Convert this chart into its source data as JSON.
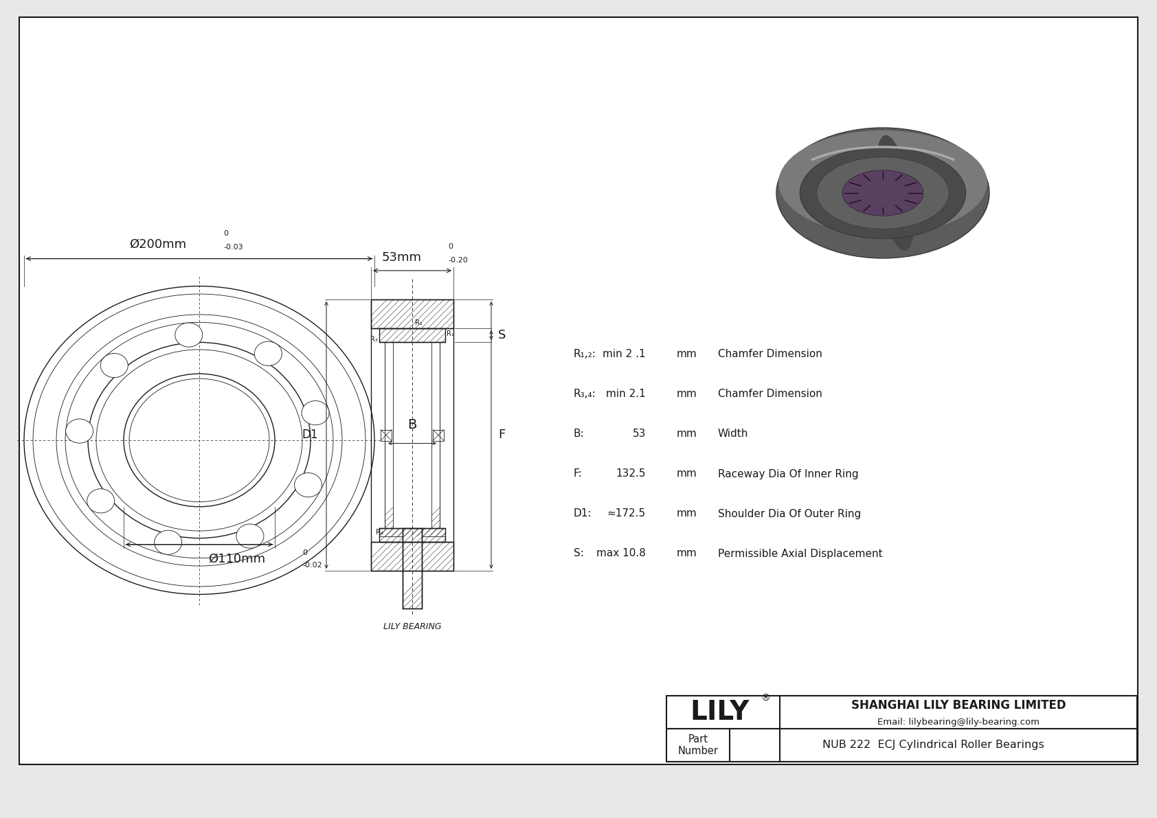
{
  "bg_color": "#e8e8e8",
  "drawing_bg": "#ffffff",
  "line_color": "#1a1a1a",
  "title_box": {
    "company": "SHANGHAI LILY BEARING LIMITED",
    "email": "Email: lilybearing@lily-bearing.com",
    "part_label": "Part\nNumber",
    "part_number": "NUB 222  ECJ Cylindrical Roller Bearings",
    "lily_text": "LILY"
  },
  "specs": [
    {
      "label": "R₁,₂:",
      "value": "min 2 .1",
      "unit": "mm",
      "desc": "Chamfer Dimension"
    },
    {
      "label": "R₃,₄:",
      "value": "min 2.1",
      "unit": "mm",
      "desc": "Chamfer Dimension"
    },
    {
      "label": "B:",
      "value": "53",
      "unit": "mm",
      "desc": "Width"
    },
    {
      "label": "F:",
      "value": "132.5",
      "unit": "mm",
      "desc": "Raceway Dia Of Inner Ring"
    },
    {
      "label": "D1:",
      "value": "≈172.5",
      "unit": "mm",
      "desc": "Shoulder Dia Of Outer Ring"
    },
    {
      "label": "S:",
      "value": "max 10.8",
      "unit": "mm",
      "desc": "Permissible Axial Displacement"
    }
  ]
}
